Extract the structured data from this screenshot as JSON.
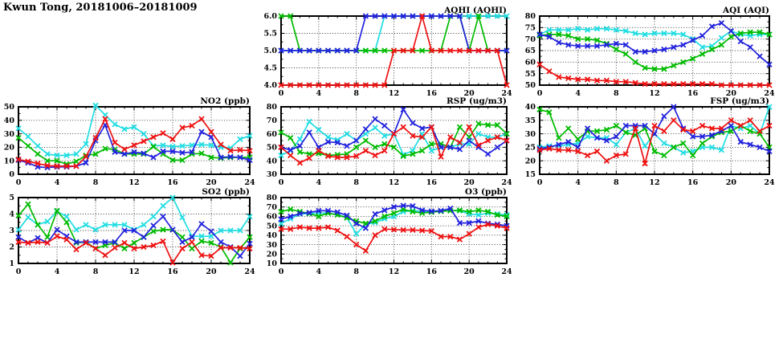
{
  "page": {
    "title": "Kwun Tong, 20181006–20181009"
  },
  "series_colors": {
    "red": "#ee1111",
    "green": "#00bb00",
    "blue": "#2222dd",
    "cyan": "#22dde2"
  },
  "chart_data": [
    {
      "key": "aqhi",
      "type": "line",
      "title": "AQHI (AQHI)",
      "xlim": [
        0,
        24
      ],
      "xticks": [
        0,
        4,
        8,
        12,
        16,
        20,
        24
      ],
      "xtick_labels": [
        "0",
        "4",
        "8",
        "12",
        "16",
        "20",
        "24"
      ],
      "ylim": [
        4,
        6
      ],
      "yticks": [
        4,
        4.5,
        5,
        5.5,
        6
      ],
      "ytick_labels": [
        "4.0",
        "4.5",
        "5.0",
        "5.5",
        "6.0"
      ],
      "grid": true,
      "legend": "none",
      "series": [
        {
          "name": "cyan",
          "values": [
            5,
            5,
            5,
            5,
            5,
            5,
            5,
            5,
            5,
            5,
            5,
            6,
            6,
            6,
            6,
            6,
            6,
            6,
            6,
            6,
            6,
            6,
            6,
            6,
            6
          ]
        },
        {
          "name": "green",
          "values": [
            6,
            6,
            5,
            5,
            5,
            5,
            5,
            5,
            5,
            5,
            5,
            5,
            5,
            5,
            5,
            5,
            5,
            5,
            6,
            6,
            5,
            6,
            5,
            5,
            5
          ]
        },
        {
          "name": "blue",
          "values": [
            5,
            5,
            5,
            5,
            5,
            5,
            5,
            5,
            5,
            6,
            6,
            6,
            6,
            6,
            6,
            6,
            6,
            6,
            6,
            6,
            5,
            5,
            5,
            5,
            5
          ]
        },
        {
          "name": "red",
          "values": [
            4,
            4,
            4,
            4,
            4,
            4,
            4,
            4,
            4,
            4,
            4,
            4,
            5,
            5,
            5,
            6,
            5,
            5,
            5,
            5,
            5,
            5,
            5,
            5,
            4
          ]
        }
      ]
    },
    {
      "key": "aqi",
      "type": "line",
      "title": "AQI (AQI)",
      "xlim": [
        0,
        24
      ],
      "xticks": [
        0,
        4,
        8,
        12,
        16,
        20,
        24
      ],
      "xtick_labels": [
        "0",
        "4",
        "8",
        "12",
        "16",
        "20",
        "24"
      ],
      "ylim": [
        50,
        80
      ],
      "yticks": [
        50,
        55,
        60,
        65,
        70,
        75,
        80
      ],
      "ytick_labels": [
        "50",
        "55",
        "60",
        "65",
        "70",
        "75",
        "80"
      ],
      "grid": true,
      "legend": "none",
      "series": [
        {
          "name": "cyan",
          "values": [
            72,
            74,
            74,
            74,
            74.5,
            74,
            74.5,
            74.5,
            74,
            73.5,
            72.5,
            72,
            72.5,
            72.5,
            72.5,
            72,
            70,
            66.5,
            67,
            70.5,
            73.5,
            72,
            71.5,
            72,
            72
          ]
        },
        {
          "name": "green",
          "values": [
            71.5,
            72,
            72,
            71.5,
            70,
            70,
            69.5,
            68,
            65.5,
            63.5,
            60,
            57.5,
            57,
            57,
            58.5,
            60,
            61.5,
            63.5,
            65.5,
            67.5,
            71,
            72.5,
            73,
            73,
            72
          ]
        },
        {
          "name": "blue",
          "values": [
            72,
            71,
            68.5,
            67.5,
            67,
            67,
            67,
            67.5,
            68,
            67.5,
            64.5,
            64.5,
            65,
            65.5,
            66.5,
            67.5,
            69.5,
            71.5,
            75.5,
            77,
            73.5,
            69,
            66.5,
            62.5,
            59
          ]
        },
        {
          "name": "red",
          "values": [
            59,
            56,
            53.5,
            53,
            52.5,
            52.5,
            52,
            52,
            51.5,
            51.5,
            51,
            50.5,
            50.5,
            50.5,
            50.5,
            50.5,
            50.5,
            50.5,
            50.5,
            50,
            50,
            50,
            50,
            50,
            50
          ]
        }
      ]
    },
    {
      "key": "no2",
      "type": "line",
      "title": "NO2 (ppb)",
      "xlim": [
        0,
        24
      ],
      "xticks": [
        0,
        4,
        8,
        12,
        16,
        20,
        24
      ],
      "xtick_labels": [
        "0",
        "4",
        "8",
        "12",
        "16",
        "20",
        "24"
      ],
      "ylim": [
        0,
        50
      ],
      "yticks": [
        0,
        10,
        20,
        30,
        40,
        50
      ],
      "ytick_labels": [
        "0",
        "10",
        "20",
        "30",
        "40",
        "50"
      ],
      "grid": true,
      "legend": "none",
      "series": [
        {
          "name": "cyan",
          "values": [
            34,
            28,
            21,
            15,
            14,
            14,
            15,
            22.5,
            51,
            44,
            37,
            33.5,
            35,
            30,
            21,
            21.5,
            20.5,
            21,
            21.5,
            22,
            21.5,
            20,
            19.5,
            26,
            28.5
          ]
        },
        {
          "name": "green",
          "values": [
            27,
            21,
            15,
            10,
            10,
            7.5,
            9.5,
            14,
            15,
            19,
            18.5,
            15,
            15,
            15,
            20.5,
            15,
            10.5,
            10.5,
            15,
            15.5,
            12.5,
            12,
            12.5,
            12.5,
            12.5
          ]
        },
        {
          "name": "blue",
          "values": [
            10.5,
            8.5,
            5.5,
            5,
            5.5,
            5.5,
            6,
            8.5,
            25,
            36.5,
            16.5,
            15,
            16.5,
            15.5,
            12.5,
            17,
            17,
            16,
            16.5,
            31.5,
            27.5,
            12.5,
            13,
            12.5,
            10.5
          ]
        },
        {
          "name": "red",
          "values": [
            11,
            9.5,
            8,
            6.5,
            6,
            6,
            6,
            13,
            27,
            41,
            23.5,
            18.5,
            21.5,
            24.5,
            27.5,
            30.5,
            26,
            34.5,
            36,
            41,
            31.5,
            22,
            17.5,
            18,
            17.5
          ]
        }
      ]
    },
    {
      "key": "rsp",
      "type": "line",
      "title": "RSP (ug/m3)",
      "xlim": [
        0,
        24
      ],
      "xticks": [
        0,
        4,
        8,
        12,
        16,
        20,
        24
      ],
      "xtick_labels": [
        "0",
        "4",
        "8",
        "12",
        "16",
        "20",
        "24"
      ],
      "ylim": [
        30,
        80
      ],
      "yticks": [
        30,
        40,
        50,
        60,
        70,
        80
      ],
      "ytick_labels": [
        "30",
        "40",
        "50",
        "60",
        "70",
        "80"
      ],
      "grid": true,
      "legend": "none",
      "series": [
        {
          "name": "cyan",
          "values": [
            44,
            47.5,
            56,
            69,
            63,
            57.5,
            55.5,
            60,
            55,
            60,
            64.5,
            58.5,
            60,
            44.5,
            47.5,
            60,
            47.5,
            50,
            50,
            52.5,
            52.5,
            60,
            57.5,
            57.5,
            60
          ]
        },
        {
          "name": "green",
          "values": [
            61,
            57,
            46.5,
            45,
            45.5,
            44,
            44.5,
            45,
            50,
            55,
            50,
            52.5,
            50,
            43.5,
            45,
            47.5,
            52.5,
            52.5,
            50,
            65,
            57.5,
            67.5,
            66.5,
            66.5,
            60
          ]
        },
        {
          "name": "blue",
          "values": [
            50,
            48,
            51,
            61,
            50,
            54,
            53.5,
            51,
            55,
            63.5,
            71,
            66,
            60,
            78,
            68,
            64,
            65,
            50,
            50,
            48.5,
            55,
            50,
            45,
            50,
            55
          ]
        },
        {
          "name": "red",
          "values": [
            50,
            44,
            38.5,
            42,
            47.5,
            43.5,
            42.5,
            42.5,
            43.5,
            47.5,
            44,
            47.5,
            60,
            65,
            58.5,
            57.5,
            65,
            43,
            57.5,
            53.5,
            65,
            51.5,
            55,
            57.5,
            55
          ]
        }
      ]
    },
    {
      "key": "fsp",
      "type": "line",
      "title": "FSP (ug/m3)",
      "xlim": [
        0,
        24
      ],
      "xticks": [
        0,
        4,
        8,
        12,
        16,
        20,
        24
      ],
      "xtick_labels": [
        "0",
        "4",
        "8",
        "12",
        "16",
        "20",
        "24"
      ],
      "ylim": [
        15,
        40
      ],
      "yticks": [
        15,
        20,
        25,
        30,
        35,
        40
      ],
      "ytick_labels": [
        "15",
        "20",
        "25",
        "30",
        "35",
        "40"
      ],
      "grid": true,
      "legend": "none",
      "series": [
        {
          "name": "cyan",
          "values": [
            25,
            25.5,
            25.5,
            26,
            26.5,
            29,
            28.5,
            28.5,
            26,
            30.5,
            32,
            25.5,
            30,
            26.5,
            25,
            23,
            23.5,
            25,
            25,
            24,
            33,
            32,
            33,
            30,
            40
          ]
        },
        {
          "name": "green",
          "values": [
            39,
            38,
            28.5,
            32,
            28,
            31,
            31,
            31.5,
            33,
            30.5,
            29.5,
            32,
            23.5,
            22,
            25,
            26.5,
            22,
            26.5,
            29,
            30.5,
            31,
            33,
            31,
            30,
            25
          ]
        },
        {
          "name": "blue",
          "values": [
            24.5,
            25,
            26,
            27,
            25,
            32,
            28.5,
            27.5,
            29,
            33,
            33,
            33,
            30,
            36.5,
            40,
            32,
            29,
            29,
            29.5,
            31,
            33,
            27,
            26,
            25,
            23.5
          ]
        },
        {
          "name": "red",
          "values": [
            24,
            24.5,
            24,
            24,
            23.5,
            22,
            23.5,
            20,
            22,
            22.5,
            32,
            19,
            33,
            31,
            35,
            31.5,
            31,
            33,
            32,
            32,
            35,
            33,
            35,
            31,
            33
          ]
        }
      ]
    },
    {
      "key": "so2",
      "type": "line",
      "title": "SO2 (ppb)",
      "xlim": [
        0,
        24
      ],
      "xticks": [
        0,
        4,
        8,
        12,
        16,
        20,
        24
      ],
      "xtick_labels": [
        "0",
        "4",
        "8",
        "12",
        "16",
        "20",
        "24"
      ],
      "ylim": [
        1,
        5
      ],
      "yticks": [
        1,
        2,
        3,
        4,
        5
      ],
      "ytick_labels": [
        "1",
        "2",
        "3",
        "4",
        "5"
      ],
      "grid": true,
      "legend": "none",
      "series": [
        {
          "name": "cyan",
          "values": [
            3.05,
            3.8,
            3.35,
            3.55,
            4.15,
            3.85,
            3.05,
            3.35,
            3.05,
            3.35,
            3.35,
            3.35,
            3.05,
            3.35,
            3.85,
            4.5,
            5,
            3.8,
            2.65,
            2.65,
            2.65,
            3,
            3,
            3,
            3.85
          ]
        },
        {
          "name": "green",
          "values": [
            3.9,
            4.6,
            3.35,
            2.6,
            4.2,
            3.5,
            2.25,
            2.3,
            1.9,
            2.1,
            2.25,
            1.9,
            2.25,
            2.6,
            2.95,
            3.05,
            3.05,
            2.6,
            1.9,
            2.35,
            2.25,
            2,
            1.05,
            1.9,
            2.6
          ]
        },
        {
          "name": "blue",
          "values": [
            2.6,
            2.25,
            2.55,
            2.25,
            3.05,
            2.65,
            2.3,
            2.3,
            2.3,
            2.3,
            2.3,
            3,
            3,
            2.6,
            3.3,
            3.85,
            3.05,
            2.3,
            2.6,
            3.4,
            2.95,
            2.3,
            2,
            1.45,
            2.2
          ]
        },
        {
          "name": "red",
          "values": [
            2.3,
            2.25,
            2.3,
            2.25,
            2.65,
            2.45,
            1.85,
            2.25,
            1.9,
            1.5,
            1.95,
            2.25,
            1.9,
            2,
            2.1,
            2.35,
            1.05,
            1.9,
            2.3,
            1.5,
            1.45,
            1.95,
            1.95,
            1.95,
            1.9
          ]
        }
      ]
    },
    {
      "key": "o3",
      "type": "line",
      "title": "O3 (ppb)",
      "xlim": [
        0,
        24
      ],
      "xticks": [
        0,
        4,
        8,
        12,
        16,
        20,
        24
      ],
      "xtick_labels": [
        "0",
        "4",
        "8",
        "12",
        "16",
        "20",
        "24"
      ],
      "ylim": [
        10,
        80
      ],
      "yticks": [
        10,
        20,
        30,
        40,
        50,
        60,
        70,
        80
      ],
      "ytick_labels": [
        "10",
        "20",
        "30",
        "40",
        "50",
        "60",
        "70",
        "80"
      ],
      "grid": true,
      "legend": "none",
      "series": [
        {
          "name": "cyan",
          "values": [
            52.5,
            57.5,
            62.5,
            63,
            63.5,
            63.5,
            62,
            58.5,
            41.5,
            51.5,
            53.5,
            57.5,
            60,
            65,
            66,
            65.5,
            65,
            65.5,
            66,
            66,
            62.5,
            61.5,
            63.5,
            62.5,
            61.5
          ]
        },
        {
          "name": "green",
          "values": [
            65,
            67.5,
            65,
            63,
            60,
            63.5,
            61.5,
            58.5,
            55,
            52.5,
            55,
            60,
            63.5,
            67.5,
            65,
            63.5,
            64.5,
            65.5,
            66,
            66.5,
            65,
            66.5,
            65,
            61.5,
            60
          ]
        },
        {
          "name": "blue",
          "values": [
            57,
            60,
            63,
            64,
            66,
            66,
            64.5,
            61,
            52.5,
            47.5,
            62.5,
            66.5,
            70,
            71.5,
            71,
            66.5,
            65.5,
            66,
            68.5,
            53,
            53,
            55,
            52.5,
            51.5,
            50
          ]
        },
        {
          "name": "red",
          "values": [
            46.5,
            46.5,
            48.5,
            47.5,
            47.5,
            48.5,
            45,
            38.5,
            30,
            23.5,
            40,
            46.5,
            46,
            45.5,
            45.5,
            45,
            44.5,
            38.5,
            38.5,
            35.5,
            41.5,
            48.5,
            51.5,
            50,
            47.5
          ]
        }
      ]
    }
  ]
}
